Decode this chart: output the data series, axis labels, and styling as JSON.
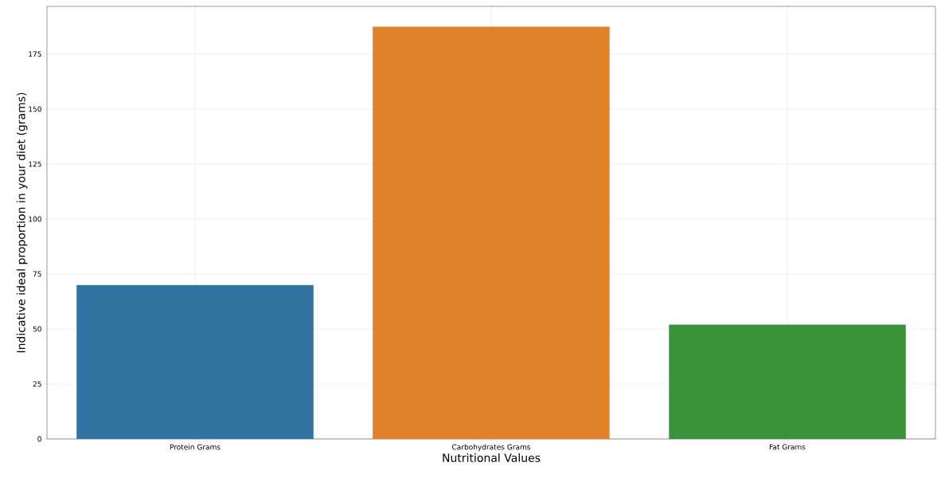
{
  "chart_data": {
    "type": "bar",
    "xlabel": "Nutritional Values",
    "ylabel": "Indicative ideal proportion in your diet (grams)",
    "categories": [
      "Protein Grams",
      "Carbohydrates Grams",
      "Fat Grams"
    ],
    "values": [
      70,
      187.5,
      52
    ],
    "colors": [
      "#3274a1",
      "#e1812c",
      "#3a923a"
    ],
    "ylim": [
      0,
      196.7
    ],
    "yticks": [
      0,
      25,
      50,
      75,
      100,
      125,
      150,
      175
    ],
    "grid": true
  }
}
